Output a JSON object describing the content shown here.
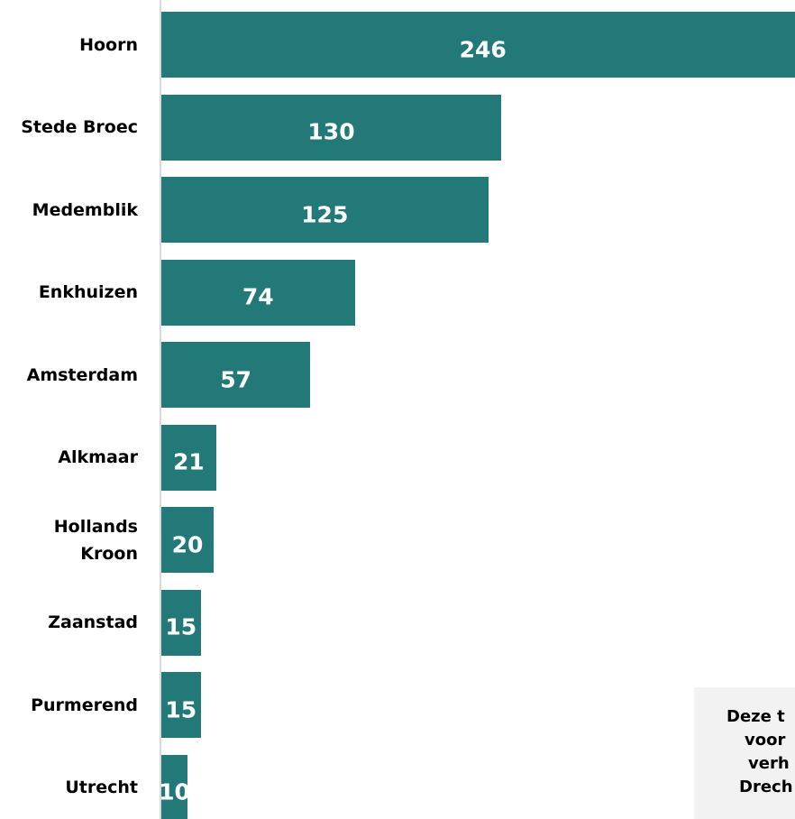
{
  "chart_data": {
    "type": "bar",
    "orientation": "horizontal",
    "categories": [
      "Hoorn",
      "Stede Broec",
      "Medemblik",
      "Enkhuizen",
      "Amsterdam",
      "Alkmaar",
      "Hollands Kroon",
      "Zaanstad",
      "Purmerend",
      "Utrecht"
    ],
    "values": [
      246,
      130,
      125,
      74,
      57,
      21,
      20,
      15,
      15,
      10
    ],
    "color": "#237878"
  },
  "note": {
    "lines": [
      "Deze t",
      "voor",
      "verh",
      "Drech"
    ]
  }
}
